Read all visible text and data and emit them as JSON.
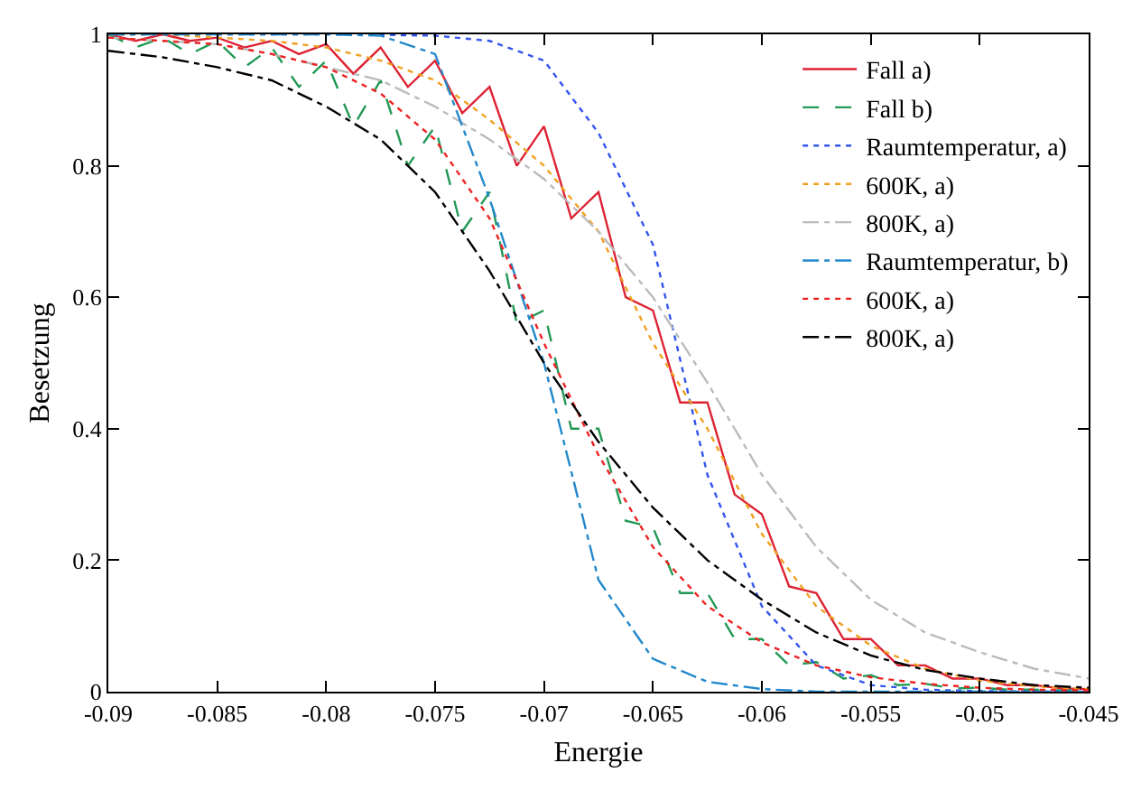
{
  "chart_data": {
    "type": "line",
    "xlabel": "Energie",
    "ylabel": "Besetzung",
    "xlim": [
      -0.09,
      -0.045
    ],
    "ylim": [
      0,
      1
    ],
    "xticks": [
      -0.09,
      -0.085,
      -0.08,
      -0.075,
      -0.07,
      -0.065,
      -0.06,
      -0.055,
      -0.05,
      -0.045
    ],
    "yticks": [
      0,
      0.2,
      0.4,
      0.6,
      0.8,
      1
    ],
    "grid": false,
    "legend": "top right",
    "marker": "none",
    "x": [
      -0.09,
      -0.0875,
      -0.085,
      -0.0825,
      -0.08,
      -0.0775,
      -0.075,
      -0.0725,
      -0.07,
      -0.0675,
      -0.065,
      -0.0625,
      -0.06,
      -0.0575,
      -0.055,
      -0.0525,
      -0.05,
      -0.0475,
      -0.045
    ],
    "series": [
      {
        "name": "Fall a)",
        "color": "#dd2233",
        "line_style": "solid",
        "x": [
          -0.09,
          -0.08875,
          -0.0875,
          -0.08625,
          -0.085,
          -0.08375,
          -0.0825,
          -0.08125,
          -0.08,
          -0.07875,
          -0.0775,
          -0.07625,
          -0.075,
          -0.07375,
          -0.0725,
          -0.07125,
          -0.07,
          -0.06875,
          -0.0675,
          -0.06625,
          -0.065,
          -0.06375,
          -0.0625,
          -0.06125,
          -0.06,
          -0.05875,
          -0.0575,
          -0.05625,
          -0.055,
          -0.05375,
          -0.0525,
          -0.05125,
          -0.05,
          -0.04875,
          -0.0475,
          -0.04625,
          -0.045
        ],
        "values": [
          1,
          0.99,
          1,
          0.99,
          0.995,
          0.98,
          0.99,
          0.97,
          0.985,
          0.94,
          0.98,
          0.92,
          0.96,
          0.88,
          0.92,
          0.8,
          0.86,
          0.72,
          0.76,
          0.6,
          0.58,
          0.44,
          0.44,
          0.3,
          0.27,
          0.16,
          0.15,
          0.08,
          0.08,
          0.04,
          0.04,
          0.02,
          0.02,
          0.01,
          0.01,
          0.005,
          0.004
        ]
      },
      {
        "name": "Fall b)",
        "color": "#229955",
        "line_style": "dashed",
        "x": [
          -0.09,
          -0.08875,
          -0.0875,
          -0.08625,
          -0.085,
          -0.08375,
          -0.0825,
          -0.08125,
          -0.08,
          -0.07875,
          -0.0775,
          -0.07625,
          -0.075,
          -0.07375,
          -0.0725,
          -0.07125,
          -0.07,
          -0.06875,
          -0.0675,
          -0.06625,
          -0.065,
          -0.06375,
          -0.0625,
          -0.06125,
          -0.06,
          -0.05875,
          -0.0575,
          -0.05625,
          -0.055,
          -0.05375,
          -0.0525,
          -0.05125,
          -0.05,
          -0.04875,
          -0.0475,
          -0.04625,
          -0.045
        ],
        "values": [
          1,
          0.98,
          0.995,
          0.97,
          0.99,
          0.95,
          0.98,
          0.92,
          0.96,
          0.86,
          0.93,
          0.8,
          0.86,
          0.7,
          0.76,
          0.56,
          0.58,
          0.4,
          0.4,
          0.26,
          0.25,
          0.15,
          0.15,
          0.08,
          0.08,
          0.04,
          0.045,
          0.02,
          0.025,
          0.01,
          0.012,
          0.005,
          0.006,
          0.003,
          0.003,
          0.002,
          0.002
        ]
      },
      {
        "name": "Raumtemperatur, a)",
        "color": "#3355ee",
        "line_style": "dotted",
        "values": [
          1,
          1,
          1,
          1,
          1,
          0.999,
          0.998,
          0.99,
          0.96,
          0.85,
          0.68,
          0.33,
          0.13,
          0.04,
          0.01,
          0.003,
          0.001,
          0,
          0
        ]
      },
      {
        "name": "600K, a)",
        "color": "#f0a020",
        "line_style": "dotted",
        "values": [
          1,
          1,
          0.995,
          0.99,
          0.98,
          0.96,
          0.93,
          0.87,
          0.8,
          0.7,
          0.53,
          0.4,
          0.24,
          0.13,
          0.07,
          0.035,
          0.017,
          0.008,
          0.004
        ]
      },
      {
        "name": "800K, a)",
        "color": "#bbbbbb",
        "line_style": "dashdot",
        "values": [
          0.995,
          0.99,
          0.985,
          0.97,
          0.95,
          0.93,
          0.89,
          0.84,
          0.78,
          0.7,
          0.6,
          0.47,
          0.33,
          0.22,
          0.14,
          0.09,
          0.06,
          0.035,
          0.02
        ]
      },
      {
        "name": "Raumtemperatur, b)",
        "color": "#2288cc",
        "line_style": "dashdot",
        "values": [
          1,
          1,
          1,
          1,
          1,
          0.998,
          0.97,
          0.75,
          0.5,
          0.17,
          0.05,
          0.015,
          0.004,
          0,
          0,
          0,
          0,
          0,
          0
        ]
      },
      {
        "name": "600K, a)",
        "color": "#ee2222",
        "line_style": "dotted",
        "values": [
          0.995,
          0.99,
          0.985,
          0.97,
          0.95,
          0.91,
          0.84,
          0.72,
          0.53,
          0.36,
          0.22,
          0.13,
          0.075,
          0.04,
          0.022,
          0.012,
          0.006,
          0.003,
          0.002
        ]
      },
      {
        "name": "800K, a)",
        "color": "#000000",
        "line_style": "dashdot",
        "values": [
          0.975,
          0.965,
          0.95,
          0.93,
          0.89,
          0.84,
          0.76,
          0.64,
          0.5,
          0.38,
          0.28,
          0.2,
          0.14,
          0.09,
          0.055,
          0.033,
          0.02,
          0.01,
          0.006
        ]
      }
    ]
  }
}
